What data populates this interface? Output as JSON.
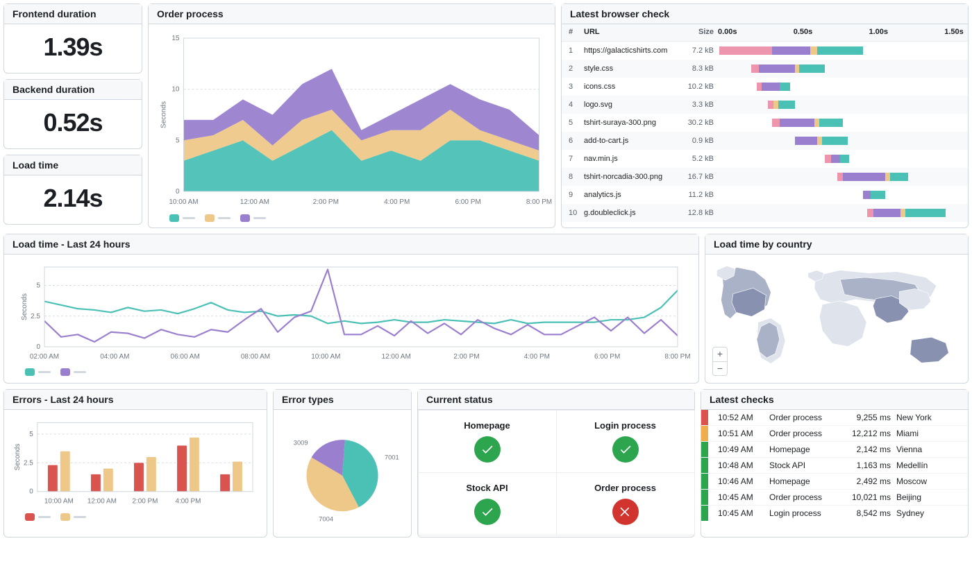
{
  "colors": {
    "teal": "#4bc0b5",
    "tan": "#eec889",
    "purple": "#9a7fcf",
    "pink": "#ee95ae",
    "red": "#d9544f",
    "green": "#2da44e",
    "orange": "#f0ad4e",
    "grid": "#d8dee4",
    "border": "#d0d7de",
    "mutedText": "#6e7781",
    "mapBase": "#dfe3eb",
    "mapDark": "#8892b0"
  },
  "metrics": [
    {
      "label": "Frontend duration",
      "value": "1.39s"
    },
    {
      "label": "Backend duration",
      "value": "0.52s"
    },
    {
      "label": "Load time",
      "value": "2.14s"
    }
  ],
  "orderProcess": {
    "title": "Order process",
    "yAxisLabel": "Seconds",
    "yTicks": [
      0,
      5,
      10,
      15
    ],
    "xLabels": [
      "10:00 AM",
      "12:00 AM",
      "2:00 PM",
      "4:00 PM",
      "6:00 PM",
      "8:00 PM"
    ],
    "series": [
      {
        "color": "teal",
        "values": [
          3,
          4,
          5,
          3,
          4.5,
          6,
          3,
          4,
          3,
          5,
          5,
          4,
          3
        ]
      },
      {
        "color": "tan",
        "values": [
          2,
          1.5,
          2,
          1.5,
          2.5,
          2,
          2,
          2,
          3,
          3,
          1,
          1,
          1
        ]
      },
      {
        "color": "purple",
        "values": [
          2,
          1.5,
          2,
          3,
          3.5,
          4,
          1,
          1.5,
          3,
          2.5,
          3,
          3,
          1.5
        ]
      }
    ]
  },
  "browserCheck": {
    "title": "Latest browser check",
    "columns": [
      "#",
      "URL",
      "Size"
    ],
    "timeTicks": [
      "0.00s",
      "0.50s",
      "1.00s",
      "1.50s"
    ],
    "timeMax": 1.6,
    "rows": [
      {
        "idx": 1,
        "url": "https://galacticshirts.com",
        "size": "7.2 kB",
        "segs": [
          [
            "pink",
            0.0,
            0.35
          ],
          [
            "purple",
            0.35,
            0.6
          ],
          [
            "tan",
            0.6,
            0.65
          ],
          [
            "teal",
            0.65,
            0.95
          ]
        ]
      },
      {
        "idx": 2,
        "url": "style.css",
        "size": "8.3 kB",
        "segs": [
          [
            "pink",
            0.21,
            0.26
          ],
          [
            "purple",
            0.26,
            0.5
          ],
          [
            "tan",
            0.5,
            0.53
          ],
          [
            "teal",
            0.53,
            0.7
          ]
        ]
      },
      {
        "idx": 3,
        "url": "icons.css",
        "size": "10.2 kB",
        "segs": [
          [
            "pink",
            0.25,
            0.28
          ],
          [
            "purple",
            0.28,
            0.4
          ],
          [
            "teal",
            0.4,
            0.47
          ]
        ]
      },
      {
        "idx": 4,
        "url": "logo.svg",
        "size": "3.3 kB",
        "segs": [
          [
            "pink",
            0.32,
            0.36
          ],
          [
            "tan",
            0.36,
            0.39
          ],
          [
            "teal",
            0.39,
            0.5
          ]
        ]
      },
      {
        "idx": 5,
        "url": "tshirt-suraya-300.png",
        "size": "30.2 kB",
        "segs": [
          [
            "pink",
            0.35,
            0.4
          ],
          [
            "purple",
            0.4,
            0.63
          ],
          [
            "tan",
            0.63,
            0.66
          ],
          [
            "teal",
            0.66,
            0.82
          ]
        ]
      },
      {
        "idx": 6,
        "url": "add-to-cart.js",
        "size": "0.9 kB",
        "segs": [
          [
            "purple",
            0.5,
            0.65
          ],
          [
            "tan",
            0.65,
            0.68
          ],
          [
            "teal",
            0.68,
            0.85
          ]
        ]
      },
      {
        "idx": 7,
        "url": "nav.min.js",
        "size": "5.2 kB",
        "segs": [
          [
            "pink",
            0.7,
            0.74
          ],
          [
            "purple",
            0.74,
            0.8
          ],
          [
            "teal",
            0.8,
            0.86
          ]
        ]
      },
      {
        "idx": 8,
        "url": "tshirt-norcadia-300.png",
        "size": "16.7 kB",
        "segs": [
          [
            "pink",
            0.78,
            0.82
          ],
          [
            "purple",
            0.82,
            1.1
          ],
          [
            "tan",
            1.1,
            1.13
          ],
          [
            "teal",
            1.13,
            1.25
          ]
        ]
      },
      {
        "idx": 9,
        "url": "analytics.js",
        "size": "11.2 kB",
        "segs": [
          [
            "purple",
            0.95,
            1.0
          ],
          [
            "teal",
            1.0,
            1.1
          ]
        ]
      },
      {
        "idx": 10,
        "url": "g.doubleclick.js",
        "size": "12.8 kB",
        "segs": [
          [
            "pink",
            0.98,
            1.02
          ],
          [
            "purple",
            1.02,
            1.2
          ],
          [
            "tan",
            1.2,
            1.23
          ],
          [
            "teal",
            1.23,
            1.5
          ]
        ]
      }
    ]
  },
  "loadTime24": {
    "title": "Load time - Last 24 hours",
    "yAxisLabel": "Seconds",
    "yTicks": [
      0,
      2.5,
      5
    ],
    "xLabels": [
      "02:00 AM",
      "04:00 AM",
      "06:00 AM",
      "08:00 AM",
      "10:00 AM",
      "12:00 AM",
      "2:00 PM",
      "4:00 PM",
      "6:00 PM",
      "8:00 PM"
    ],
    "series": [
      {
        "color": "teal",
        "values": [
          3.7,
          3.4,
          3.1,
          3.0,
          2.8,
          3.2,
          2.9,
          3.0,
          2.7,
          3.1,
          3.6,
          3.0,
          2.8,
          2.9,
          2.5,
          2.6,
          2.5,
          1.9,
          2.1,
          1.9,
          2.0,
          2.2,
          2.0,
          2.0,
          2.2,
          2.1,
          2.0,
          1.9,
          2.2,
          1.9,
          2.0,
          2.0,
          2.0,
          2.0,
          2.2,
          2.2,
          2.4,
          3.2,
          4.6
        ]
      },
      {
        "color": "purple",
        "values": [
          2.1,
          0.8,
          1.0,
          0.4,
          1.2,
          1.1,
          0.7,
          1.4,
          1.0,
          0.8,
          1.4,
          1.2,
          2.2,
          3.1,
          1.2,
          2.4,
          2.9,
          6.3,
          1.0,
          1.0,
          1.7,
          0.9,
          2.1,
          1.1,
          1.9,
          1.0,
          2.2,
          1.5,
          1.0,
          1.8,
          1.0,
          1.0,
          1.7,
          2.4,
          1.3,
          2.4,
          1.1,
          2.2,
          0.9
        ]
      }
    ]
  },
  "loadTimeCountry": {
    "title": "Load time by country"
  },
  "errors24": {
    "title": "Errors - Last 24 hours",
    "yAxisLabel": "Seconds",
    "yTicks": [
      0,
      2.5,
      5
    ],
    "xLabels": [
      "10:00 AM",
      "12:00 AM",
      "2:00 PM",
      "4:00 PM"
    ],
    "series": [
      {
        "color": "red",
        "values": [
          2.3,
          1.5,
          2.5,
          4.0,
          1.5
        ]
      },
      {
        "color": "tan",
        "values": [
          3.5,
          2.0,
          3.0,
          4.7,
          2.6
        ]
      }
    ]
  },
  "errorTypes": {
    "title": "Error types",
    "slices": [
      {
        "color": "teal",
        "value": 7001
      },
      {
        "color": "tan",
        "value": 7004
      },
      {
        "color": "purple",
        "value": 3009
      }
    ]
  },
  "currentStatus": {
    "title": "Current status",
    "items": [
      {
        "label": "Homepage",
        "ok": true
      },
      {
        "label": "Login process",
        "ok": true
      },
      {
        "label": "Stock API",
        "ok": true
      },
      {
        "label": "Order process",
        "ok": false
      }
    ]
  },
  "latestChecks": {
    "title": "Latest checks",
    "rows": [
      {
        "status": "red",
        "time": "10:52 AM",
        "name": "Order process",
        "ms": "9,255 ms",
        "loc": "New York"
      },
      {
        "status": "orange",
        "time": "10:51 AM",
        "name": "Order process",
        "ms": "12,212 ms",
        "loc": "Miami"
      },
      {
        "status": "green",
        "time": "10:49 AM",
        "name": "Homepage",
        "ms": "2,142 ms",
        "loc": "Vienna"
      },
      {
        "status": "green",
        "time": "10:48 AM",
        "name": "Stock API",
        "ms": "1,163 ms",
        "loc": "Medellín"
      },
      {
        "status": "green",
        "time": "10:46 AM",
        "name": "Homepage",
        "ms": "2,492 ms",
        "loc": "Moscow"
      },
      {
        "status": "green",
        "time": "10:45 AM",
        "name": "Order process",
        "ms": "10,021 ms",
        "loc": "Beijing"
      },
      {
        "status": "green",
        "time": "10:45 AM",
        "name": "Login process",
        "ms": "8,542 ms",
        "loc": "Sydney"
      }
    ]
  }
}
